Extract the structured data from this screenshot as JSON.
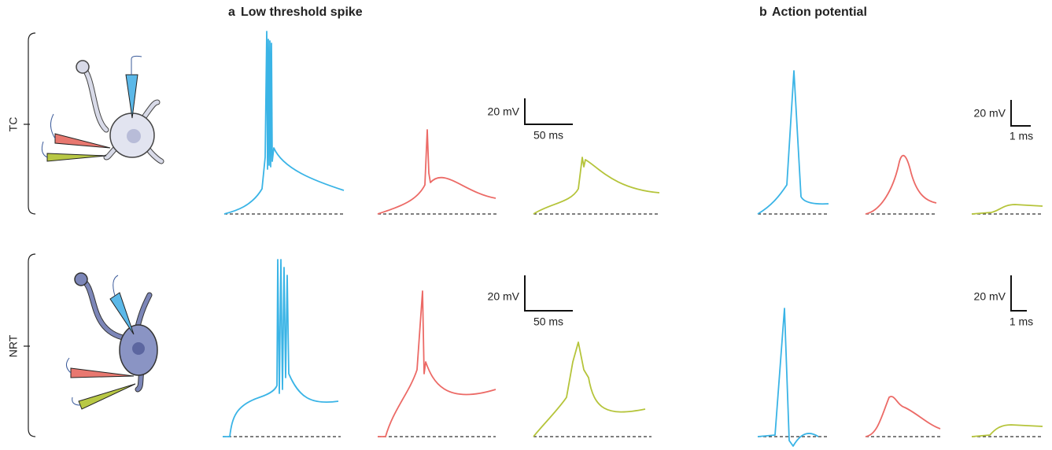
{
  "panels": [
    {
      "letter": "a",
      "title": "Low threshold spike"
    },
    {
      "letter": "b",
      "title": "Action potential"
    }
  ],
  "rows": [
    {
      "label": "TC",
      "scale_bars": [
        {
          "y": "20 mV",
          "x": "50 ms"
        },
        {
          "y": "20 mV",
          "x": "1 ms"
        }
      ]
    },
    {
      "label": "NRT",
      "scale_bars": [
        {
          "y": "20 mV",
          "x": "50 ms"
        },
        {
          "y": "20 mV",
          "x": "1 ms"
        }
      ]
    }
  ]
}
